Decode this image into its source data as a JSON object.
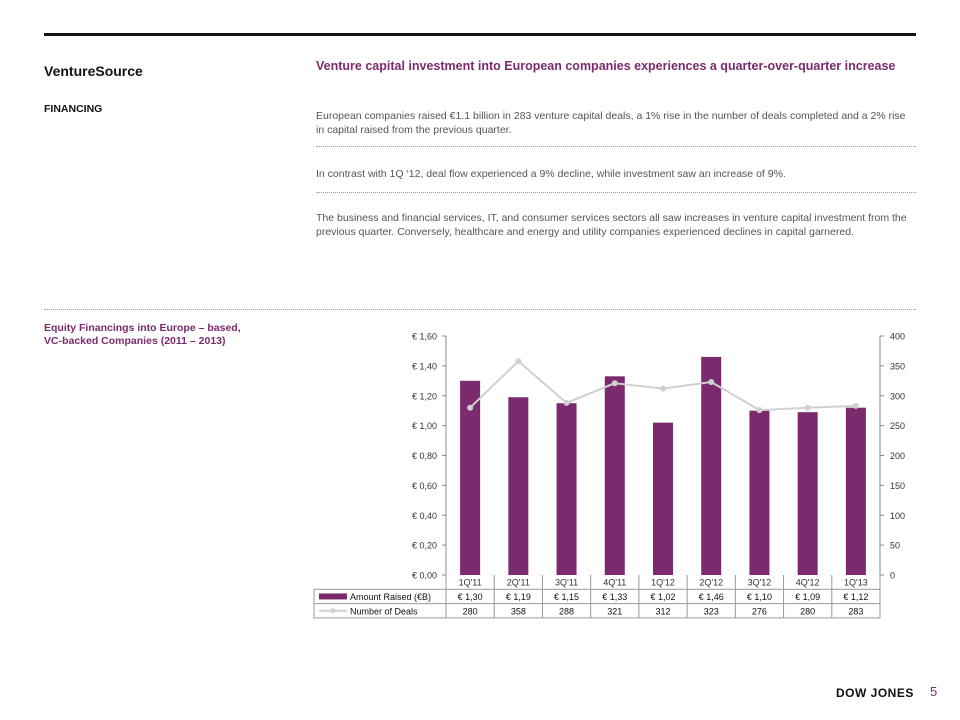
{
  "header": {
    "brand": "VentureSource",
    "section": "FINANCING"
  },
  "content": {
    "headline": "Venture capital investment into European companies experiences a quarter-over-quarter increase",
    "paragraphs": [
      "European companies raised €1.1 billion in 283 venture capital deals, a 1% rise in the number of deals completed and a 2% rise in capital raised from the previous quarter.",
      "In contrast with 1Q ‘12, deal flow experienced a 9% decline, while investment saw an increase of 9%.",
      "The business and financial services, IT, and consumer services sectors all saw increases in venture capital investment from the previous quarter. Conversely, healthcare and energy and utility companies experienced declines in capital garnered."
    ]
  },
  "chart_title": "Equity Financings into Europe – based, VC-backed Companies (2011 – 2013)",
  "chart_data": {
    "type": "bar",
    "categories": [
      "1Q'11",
      "2Q'11",
      "3Q'11",
      "4Q'11",
      "1Q'12",
      "2Q'12",
      "3Q'12",
      "4Q'12",
      "1Q'13"
    ],
    "series": [
      {
        "name": "Amount Raised (€B)",
        "type": "bar",
        "axis": "left",
        "color": "#7b2a6e",
        "values": [
          1.3,
          1.19,
          1.15,
          1.33,
          1.02,
          1.46,
          1.1,
          1.09,
          1.12
        ],
        "labels": [
          "€ 1,30",
          "€ 1,19",
          "€ 1,15",
          "€ 1,33",
          "€ 1,02",
          "€ 1,46",
          "€ 1,10",
          "€ 1,09",
          "€ 1,12"
        ]
      },
      {
        "name": "Number of Deals",
        "type": "line",
        "axis": "right",
        "color": "#d0d0d0",
        "values": [
          280,
          358,
          288,
          321,
          312,
          323,
          276,
          280,
          283
        ],
        "labels": [
          "280",
          "358",
          "288",
          "321",
          "312",
          "323",
          "276",
          "280",
          "283"
        ]
      }
    ],
    "y_left": {
      "range": [
        0,
        1.6
      ],
      "ticks": [
        0,
        0.2,
        0.4,
        0.6,
        0.8,
        1.0,
        1.2,
        1.4,
        1.6
      ],
      "tick_labels": [
        "€ 0,00",
        "€ 0,20",
        "€ 0,40",
        "€ 0,60",
        "€ 0,80",
        "€ 1,00",
        "€ 1,20",
        "€ 1,40",
        "€ 1,60"
      ]
    },
    "y_right": {
      "range": [
        0,
        400
      ],
      "ticks": [
        0,
        50,
        100,
        150,
        200,
        250,
        300,
        350,
        400
      ],
      "tick_labels": [
        "0",
        "50",
        "100",
        "150",
        "200",
        "250",
        "300",
        "350",
        "400"
      ]
    },
    "grid": false,
    "legend": "data-table"
  },
  "footer": {
    "logo": "DOW JONES",
    "page_number": "5"
  }
}
